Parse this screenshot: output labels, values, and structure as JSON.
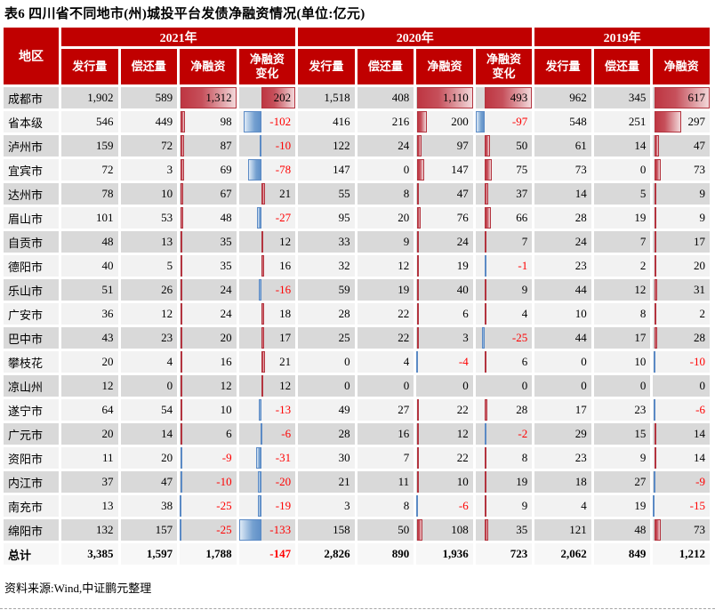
{
  "title": "表6 四川省不同地市(州)城投平台发债净融资情况(单位:亿元)",
  "source_note": "资料来源:Wind,中证鹏元整理",
  "colors": {
    "header_bg": "#c00000",
    "row_dark": "#d9d9d9",
    "row_light": "#f2f2f2",
    "negative_text": "#fe0000",
    "positive_bar": "#be3642",
    "negative_bar": "#6090c8"
  },
  "table": {
    "region_header": "地区",
    "year_groups": [
      {
        "label": "2021年",
        "columns": [
          "发行量",
          "偿还量",
          "净融资",
          "净融资变化"
        ]
      },
      {
        "label": "2020年",
        "columns": [
          "发行量",
          "偿还量",
          "净融资",
          "净融资变化"
        ]
      },
      {
        "label": "2019年",
        "columns": [
          "发行量",
          "偿还量",
          "净融资"
        ]
      }
    ],
    "bar_value_indices": [
      2,
      3,
      6,
      7,
      10
    ],
    "rows": [
      {
        "region": "成都市",
        "values": [
          1902,
          589,
          1312,
          202,
          1518,
          408,
          1110,
          493,
          962,
          345,
          617
        ]
      },
      {
        "region": "省本级",
        "values": [
          546,
          449,
          98,
          -102,
          416,
          216,
          200,
          -97,
          548,
          251,
          297
        ]
      },
      {
        "region": "泸州市",
        "values": [
          159,
          72,
          87,
          -10,
          122,
          24,
          97,
          50,
          61,
          14,
          47
        ]
      },
      {
        "region": "宜宾市",
        "values": [
          72,
          3,
          69,
          -78,
          147,
          0,
          147,
          75,
          73,
          0,
          73
        ]
      },
      {
        "region": "达州市",
        "values": [
          78,
          10,
          67,
          21,
          55,
          8,
          47,
          37,
          14,
          5,
          9
        ]
      },
      {
        "region": "眉山市",
        "values": [
          101,
          53,
          48,
          -27,
          95,
          20,
          76,
          66,
          28,
          19,
          9
        ]
      },
      {
        "region": "自贡市",
        "values": [
          48,
          13,
          35,
          12,
          33,
          9,
          24,
          7,
          24,
          7,
          17
        ]
      },
      {
        "region": "德阳市",
        "values": [
          40,
          5,
          35,
          16,
          32,
          12,
          19,
          -1,
          23,
          2,
          20
        ]
      },
      {
        "region": "乐山市",
        "values": [
          51,
          26,
          24,
          -16,
          59,
          19,
          40,
          9,
          44,
          12,
          31
        ]
      },
      {
        "region": "广安市",
        "values": [
          36,
          12,
          24,
          18,
          28,
          22,
          6,
          4,
          10,
          8,
          2
        ]
      },
      {
        "region": "巴中市",
        "values": [
          43,
          23,
          20,
          17,
          25,
          22,
          3,
          -25,
          44,
          17,
          28
        ]
      },
      {
        "region": "攀枝花",
        "values": [
          20,
          4,
          16,
          21,
          0,
          4,
          -4,
          6,
          0,
          10,
          -10
        ]
      },
      {
        "region": "凉山州",
        "values": [
          12,
          0,
          12,
          12,
          0,
          0,
          0,
          0,
          0,
          0,
          0
        ]
      },
      {
        "region": "遂宁市",
        "values": [
          64,
          54,
          10,
          -13,
          49,
          27,
          22,
          28,
          17,
          23,
          -6
        ]
      },
      {
        "region": "广元市",
        "values": [
          20,
          14,
          6,
          -6,
          28,
          16,
          12,
          -2,
          29,
          15,
          14
        ]
      },
      {
        "region": "资阳市",
        "values": [
          11,
          20,
          -9,
          -31,
          30,
          7,
          22,
          8,
          23,
          9,
          14
        ]
      },
      {
        "region": "内江市",
        "values": [
          37,
          47,
          -10,
          -20,
          21,
          11,
          10,
          19,
          18,
          27,
          -9
        ]
      },
      {
        "region": "南充市",
        "values": [
          13,
          38,
          -25,
          -19,
          3,
          8,
          -6,
          9,
          4,
          19,
          -15
        ]
      },
      {
        "region": "绵阳市",
        "values": [
          132,
          157,
          -25,
          -133,
          158,
          50,
          108,
          35,
          121,
          48,
          73
        ]
      }
    ],
    "total_row": {
      "region": "总计",
      "values": [
        3385,
        1597,
        1788,
        -147,
        2826,
        890,
        1936,
        723,
        2062,
        849,
        1212
      ]
    }
  }
}
